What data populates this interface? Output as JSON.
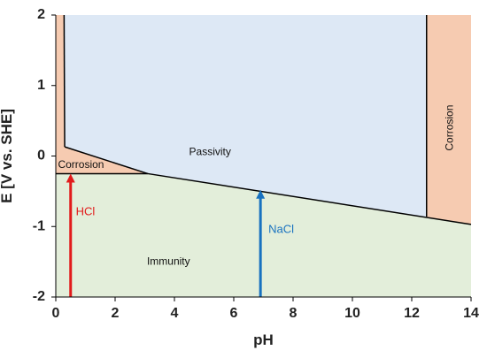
{
  "chart_data": {
    "type": "area",
    "xlabel": "pH",
    "ylabel": "E [V vs. SHE]",
    "xlim": [
      0,
      14
    ],
    "ylim": [
      -2,
      2
    ],
    "x_ticks": [
      "0",
      "2",
      "4",
      "6",
      "8",
      "10",
      "12",
      "14"
    ],
    "y_ticks": [
      "2",
      "1",
      "0",
      "-1",
      "-2"
    ],
    "grid": false,
    "colors": {
      "corrosion": "#f6cbb1",
      "passivity": "#dde8f5",
      "immunity": "#e3eeda",
      "boundary": "#000000",
      "hcl_arrow": "#e21b1b",
      "nacl_arrow": "#1872c0"
    },
    "boundaries": {
      "immunity_upper": [
        [
          0,
          -0.25
        ],
        [
          3.1,
          -0.25
        ],
        [
          14,
          -0.97
        ]
      ],
      "passivity_lower_left": [
        [
          0.3,
          0.13
        ],
        [
          3.1,
          -0.25
        ]
      ],
      "acid_corrosion_left": [
        [
          0.28,
          2
        ],
        [
          0.3,
          0.13
        ]
      ],
      "alkaline_corrosion_left": [
        [
          12.5,
          2
        ],
        [
          12.5,
          -0.86
        ]
      ]
    },
    "regions": [
      {
        "label": "Passivity",
        "x": 5.2,
        "y": 0.05
      },
      {
        "label": "Corrosion",
        "x": 0.85,
        "y": -0.13
      },
      {
        "label": "Corrosion",
        "x": 13.3,
        "y": 0.4,
        "rotated": true
      },
      {
        "label": "Immunity",
        "x": 3.8,
        "y": -1.5
      }
    ],
    "arrows": [
      {
        "label": "HCl",
        "x": 0.5,
        "y_from": -2,
        "y_to": -0.25,
        "label_x": 1.0,
        "label_y": -0.8
      },
      {
        "label": "NaCl",
        "x": 6.9,
        "y_from": -2,
        "y_to": -0.48,
        "label_x": 7.6,
        "label_y": -1.05
      }
    ]
  }
}
